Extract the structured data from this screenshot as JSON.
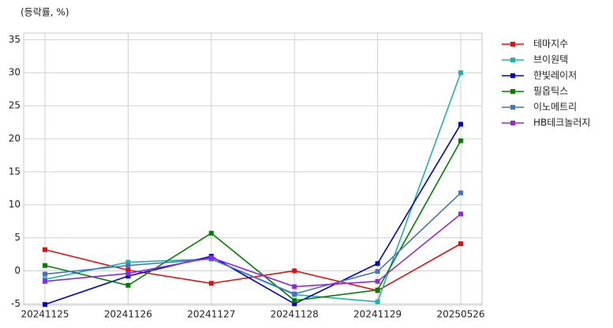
{
  "chart_data": {
    "type": "line",
    "y_label": "(등락률, %)",
    "categories": [
      "20241125",
      "20241126",
      "20241127",
      "20241128",
      "20241129",
      "20250526"
    ],
    "ylim": [
      -5.2,
      36
    ],
    "yticks": [
      -5,
      0,
      5,
      10,
      15,
      20,
      25,
      30,
      35
    ],
    "grid": true,
    "legend": "outside-right",
    "series": [
      {
        "name": "테마지수",
        "color": "#e01010",
        "values": [
          3.2,
          0.1,
          -1.9,
          0.0,
          -3.0,
          4.1
        ]
      },
      {
        "name": "브이원텍",
        "color": "#20b2aa",
        "values": [
          -1.3,
          1.3,
          1.8,
          -3.6,
          -4.7,
          30.0
        ]
      },
      {
        "name": "한빛레이저",
        "color": "#0000cc",
        "values": [
          -5.1,
          -0.8,
          2.2,
          -5.0,
          1.1,
          22.2
        ]
      },
      {
        "name": "필옵틱스",
        "color": "#008000",
        "values": [
          0.8,
          -2.2,
          5.7,
          -4.5,
          -2.9,
          19.7
        ]
      },
      {
        "name": "이노메트리",
        "color": "#4472c4",
        "values": [
          -0.5,
          0.8,
          1.8,
          -3.5,
          -0.1,
          11.8
        ]
      },
      {
        "name": "HB테크놀러지",
        "color": "#8a2be2",
        "values": [
          -1.6,
          -0.4,
          2.0,
          -2.4,
          -1.6,
          8.6
        ]
      }
    ]
  }
}
